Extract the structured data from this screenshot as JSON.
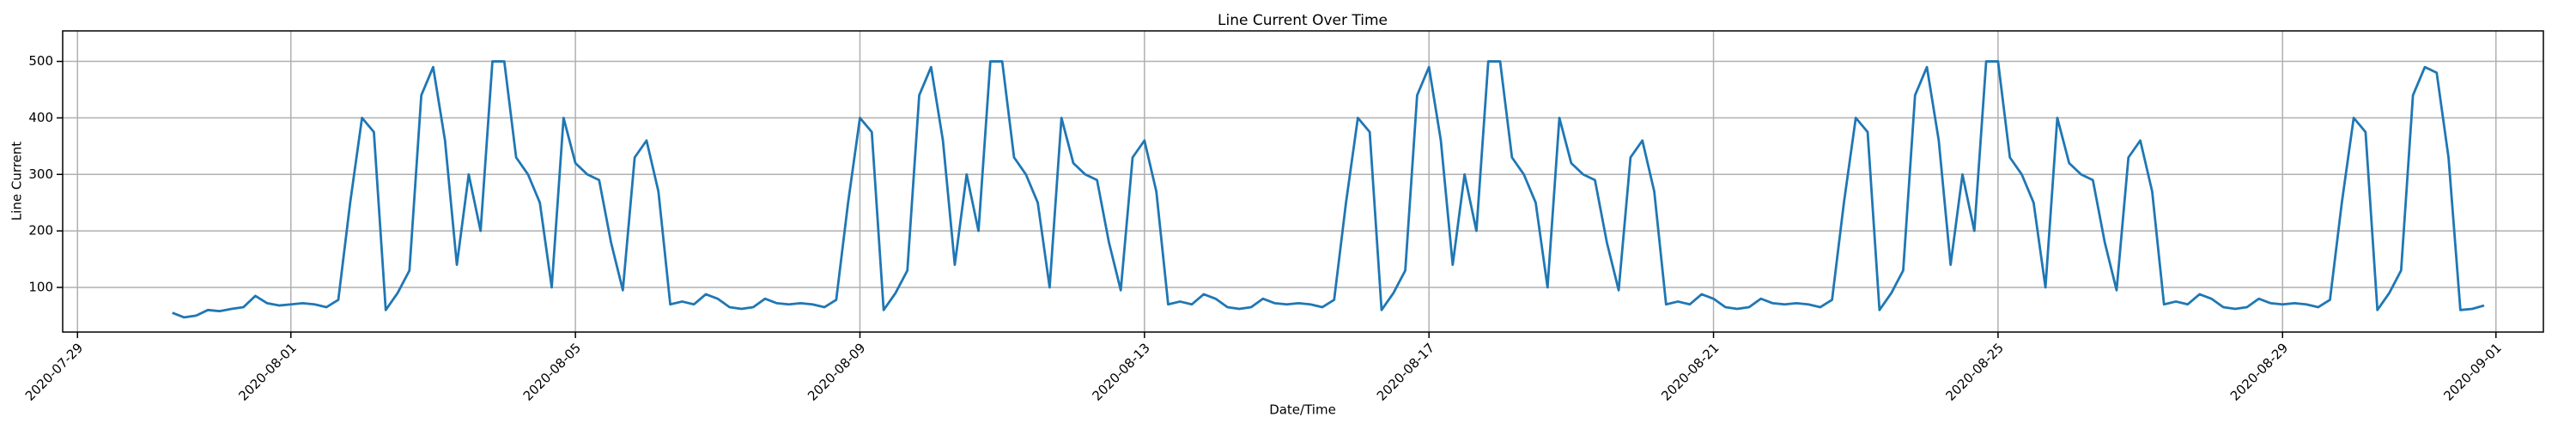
{
  "chart_data": {
    "type": "line",
    "title": "Line Current Over Time",
    "x_label": "Date/Time",
    "y_label": "Line Current",
    "color": "#1f77b4",
    "grid": true,
    "xlim": [
      "2020-07-28 19:00",
      "2020-09-01 16:00"
    ],
    "xticks": [
      "2020-07-29",
      "2020-08-01",
      "2020-08-05",
      "2020-08-09",
      "2020-08-13",
      "2020-08-17",
      "2020-08-21",
      "2020-08-25",
      "2020-08-29",
      "2020-09-01"
    ],
    "ylim": [
      21,
      554
    ],
    "yticks": [
      100,
      200,
      300,
      400,
      500
    ],
    "x": [
      "2020-07-30 08:00",
      "2020-07-30 12:00",
      "2020-07-30 16:00",
      "2020-07-30 20:00",
      "2020-07-31 00:00",
      "2020-07-31 04:00",
      "2020-07-31 08:00",
      "2020-07-31 12:00",
      "2020-07-31 16:00",
      "2020-07-31 20:00",
      "2020-08-01 00:00",
      "2020-08-01 04:00",
      "2020-08-01 08:00",
      "2020-08-01 12:00",
      "2020-08-01 16:00",
      "2020-08-01 20:00",
      "2020-08-02 00:00",
      "2020-08-02 04:00",
      "2020-08-02 08:00",
      "2020-08-02 12:00",
      "2020-08-02 16:00",
      "2020-08-02 20:00",
      "2020-08-03 00:00",
      "2020-08-03 04:00",
      "2020-08-03 08:00",
      "2020-08-03 12:00",
      "2020-08-03 16:00",
      "2020-08-03 20:00",
      "2020-08-04 00:00",
      "2020-08-04 04:00",
      "2020-08-04 08:00",
      "2020-08-04 12:00",
      "2020-08-04 16:00",
      "2020-08-04 20:00",
      "2020-08-05 00:00",
      "2020-08-05 04:00",
      "2020-08-05 08:00",
      "2020-08-05 12:00",
      "2020-08-05 16:00",
      "2020-08-05 20:00",
      "2020-08-06 00:00",
      "2020-08-06 04:00",
      "2020-08-06 08:00",
      "2020-08-06 12:00",
      "2020-08-06 16:00",
      "2020-08-06 20:00",
      "2020-08-07 00:00",
      "2020-08-07 04:00",
      "2020-08-07 08:00",
      "2020-08-07 12:00",
      "2020-08-07 16:00",
      "2020-08-07 20:00",
      "2020-08-08 00:00",
      "2020-08-08 04:00",
      "2020-08-08 08:00",
      "2020-08-08 12:00",
      "2020-08-08 16:00",
      "2020-08-08 20:00",
      "2020-08-09 00:00",
      "2020-08-09 04:00",
      "2020-08-09 08:00",
      "2020-08-09 12:00",
      "2020-08-09 16:00",
      "2020-08-09 20:00",
      "2020-08-10 00:00",
      "2020-08-10 04:00",
      "2020-08-10 08:00",
      "2020-08-10 12:00",
      "2020-08-10 16:00",
      "2020-08-10 20:00",
      "2020-08-11 00:00",
      "2020-08-11 04:00",
      "2020-08-11 08:00",
      "2020-08-11 12:00",
      "2020-08-11 16:00",
      "2020-08-11 20:00",
      "2020-08-12 00:00",
      "2020-08-12 04:00",
      "2020-08-12 08:00",
      "2020-08-12 12:00",
      "2020-08-12 16:00",
      "2020-08-12 20:00",
      "2020-08-13 00:00",
      "2020-08-13 04:00",
      "2020-08-13 08:00",
      "2020-08-13 12:00",
      "2020-08-13 16:00",
      "2020-08-13 20:00",
      "2020-08-14 00:00",
      "2020-08-14 04:00",
      "2020-08-14 08:00",
      "2020-08-14 12:00",
      "2020-08-14 16:00",
      "2020-08-14 20:00",
      "2020-08-15 00:00",
      "2020-08-15 04:00",
      "2020-08-15 08:00",
      "2020-08-15 12:00",
      "2020-08-15 16:00",
      "2020-08-15 20:00",
      "2020-08-16 00:00",
      "2020-08-16 04:00",
      "2020-08-16 08:00",
      "2020-08-16 12:00",
      "2020-08-16 16:00",
      "2020-08-16 20:00",
      "2020-08-17 00:00",
      "2020-08-17 04:00",
      "2020-08-17 08:00",
      "2020-08-17 12:00",
      "2020-08-17 16:00",
      "2020-08-17 20:00",
      "2020-08-18 00:00",
      "2020-08-18 04:00",
      "2020-08-18 08:00",
      "2020-08-18 12:00",
      "2020-08-18 16:00",
      "2020-08-18 20:00",
      "2020-08-19 00:00",
      "2020-08-19 04:00",
      "2020-08-19 08:00",
      "2020-08-19 12:00",
      "2020-08-19 16:00",
      "2020-08-19 20:00",
      "2020-08-20 00:00",
      "2020-08-20 04:00",
      "2020-08-20 08:00",
      "2020-08-20 12:00",
      "2020-08-20 16:00",
      "2020-08-20 20:00",
      "2020-08-21 00:00",
      "2020-08-21 04:00",
      "2020-08-21 08:00",
      "2020-08-21 12:00",
      "2020-08-21 16:00",
      "2020-08-21 20:00",
      "2020-08-22 00:00",
      "2020-08-22 04:00",
      "2020-08-22 08:00",
      "2020-08-22 12:00",
      "2020-08-22 16:00",
      "2020-08-22 20:00",
      "2020-08-23 00:00",
      "2020-08-23 04:00",
      "2020-08-23 08:00",
      "2020-08-23 12:00",
      "2020-08-23 16:00",
      "2020-08-23 20:00",
      "2020-08-24 00:00",
      "2020-08-24 04:00",
      "2020-08-24 08:00",
      "2020-08-24 12:00",
      "2020-08-24 16:00",
      "2020-08-24 20:00",
      "2020-08-25 00:00",
      "2020-08-25 04:00",
      "2020-08-25 08:00",
      "2020-08-25 12:00",
      "2020-08-25 16:00",
      "2020-08-25 20:00",
      "2020-08-26 00:00",
      "2020-08-26 04:00",
      "2020-08-26 08:00",
      "2020-08-26 12:00",
      "2020-08-26 16:00",
      "2020-08-26 20:00",
      "2020-08-27 00:00",
      "2020-08-27 04:00",
      "2020-08-27 08:00",
      "2020-08-27 12:00",
      "2020-08-27 16:00",
      "2020-08-27 20:00",
      "2020-08-28 00:00",
      "2020-08-28 04:00",
      "2020-08-28 08:00",
      "2020-08-28 12:00",
      "2020-08-28 16:00",
      "2020-08-28 20:00",
      "2020-08-29 00:00",
      "2020-08-29 04:00",
      "2020-08-29 08:00",
      "2020-08-29 12:00",
      "2020-08-29 16:00",
      "2020-08-29 20:00",
      "2020-08-30 00:00",
      "2020-08-30 04:00",
      "2020-08-30 08:00",
      "2020-08-30 12:00",
      "2020-08-30 16:00",
      "2020-08-30 20:00",
      "2020-08-31 00:00",
      "2020-08-31 04:00",
      "2020-08-31 08:00",
      "2020-08-31 12:00",
      "2020-08-31 16:00",
      "2020-08-31 20:00"
    ],
    "values": [
      55,
      47,
      50,
      60,
      58,
      62,
      65,
      85,
      72,
      68,
      70,
      72,
      70,
      65,
      78,
      250,
      400,
      375,
      60,
      90,
      130,
      440,
      490,
      360,
      140,
      300,
      200,
      500,
      500,
      330,
      300,
      250,
      100,
      400,
      320,
      300,
      290,
      180,
      95,
      330,
      360,
      270,
      70,
      75,
      70,
      88,
      80,
      65,
      62,
      65,
      80,
      72,
      70,
      72,
      70,
      65,
      78,
      250,
      400,
      375,
      60,
      90,
      130,
      440,
      490,
      360,
      140,
      300,
      200,
      500,
      500,
      330,
      300,
      250,
      100,
      400,
      320,
      300,
      290,
      180,
      95,
      330,
      360,
      270,
      70,
      75,
      70,
      88,
      80,
      65,
      62,
      65,
      80,
      72,
      70,
      72,
      70,
      65,
      78,
      250,
      400,
      375,
      60,
      90,
      130,
      440,
      490,
      360,
      140,
      300,
      200,
      500,
      500,
      330,
      300,
      250,
      100,
      400,
      320,
      300,
      290,
      180,
      95,
      330,
      360,
      270,
      70,
      75,
      70,
      88,
      80,
      65,
      62,
      65,
      80,
      72,
      70,
      72,
      70,
      65,
      78,
      250,
      400,
      375,
      60,
      90,
      130,
      440,
      490,
      360,
      140,
      300,
      200,
      500,
      500,
      330,
      300,
      250,
      100,
      400,
      320,
      300,
      290,
      180,
      95,
      330,
      360,
      270,
      70,
      75,
      70,
      88,
      80,
      65,
      62,
      65,
      80,
      72,
      70,
      72,
      70,
      65,
      78,
      250,
      400,
      375,
      60,
      90,
      130,
      440,
      490,
      480,
      330,
      60,
      62,
      68
    ]
  }
}
